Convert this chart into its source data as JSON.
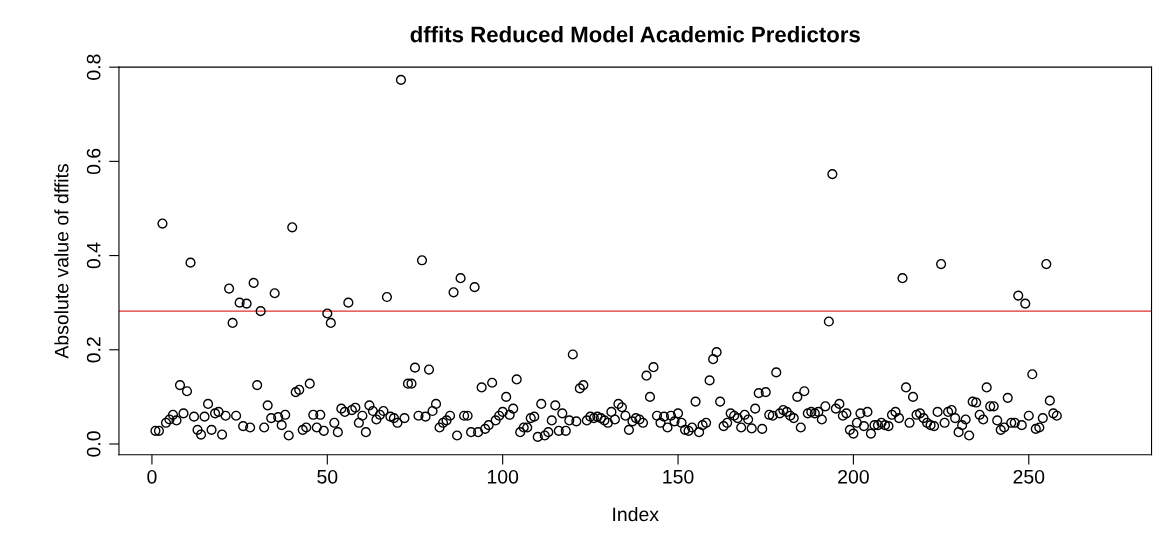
{
  "chart_data": {
    "type": "scatter",
    "title": "dffits Reduced Model Academic Predictors",
    "xlabel": "Index",
    "ylabel": "Absolute value of dffits",
    "x": [
      1,
      2,
      3,
      4,
      5,
      6,
      7,
      8,
      9,
      10,
      11,
      12,
      13,
      14,
      15,
      16,
      17,
      18,
      19,
      20,
      21,
      22,
      23,
      24,
      25,
      26,
      27,
      28,
      29,
      30,
      31,
      32,
      33,
      34,
      35,
      36,
      37,
      38,
      39,
      40,
      41,
      42,
      43,
      44,
      45,
      46,
      47,
      48,
      49,
      50,
      51,
      52,
      53,
      54,
      55,
      56,
      57,
      58,
      59,
      60,
      61,
      62,
      63,
      64,
      65,
      66,
      67,
      68,
      69,
      70,
      71,
      72,
      73,
      74,
      75,
      76,
      77,
      78,
      79,
      80,
      81,
      82,
      83,
      84,
      85,
      86,
      87,
      88,
      89,
      90,
      91,
      92,
      93,
      94,
      95,
      96,
      97,
      98,
      99,
      100,
      101,
      102,
      103,
      104,
      105,
      106,
      107,
      108,
      109,
      110,
      111,
      112,
      113,
      114,
      115,
      116,
      117,
      118,
      119,
      120,
      121,
      122,
      123,
      124,
      125,
      126,
      127,
      128,
      129,
      130,
      131,
      132,
      133,
      134,
      135,
      136,
      137,
      138,
      139,
      140,
      141,
      142,
      143,
      144,
      145,
      146,
      147,
      148,
      149,
      150,
      151,
      152,
      153,
      154,
      155,
      156,
      157,
      158,
      159,
      160,
      161,
      162,
      163,
      164,
      165,
      166,
      167,
      168,
      169,
      170,
      171,
      172,
      173,
      174,
      175,
      176,
      177,
      178,
      179,
      180,
      181,
      182,
      183,
      184,
      185,
      186,
      187,
      188,
      189,
      190,
      191,
      192,
      193,
      194,
      195,
      196,
      197,
      198,
      199,
      200,
      201,
      202,
      203,
      204,
      205,
      206,
      207,
      208,
      209,
      210,
      211,
      212,
      213,
      214,
      215,
      216,
      217,
      218,
      219,
      220,
      221,
      222,
      223,
      224,
      225,
      226,
      227,
      228,
      229,
      230,
      231,
      232,
      233,
      234,
      235,
      236,
      237,
      238,
      239,
      240,
      241,
      242,
      243,
      244,
      245,
      246,
      247,
      248,
      249,
      250,
      251,
      252,
      253,
      254,
      255,
      256,
      257,
      258
    ],
    "series": [
      {
        "color": "#000000",
        "marker": "circle",
        "values": [
          0.028,
          0.028,
          0.468,
          0.045,
          0.052,
          0.062,
          0.05,
          0.125,
          0.065,
          0.112,
          0.385,
          0.058,
          0.03,
          0.02,
          0.058,
          0.085,
          0.03,
          0.065,
          0.068,
          0.02,
          0.06,
          0.33,
          0.257,
          0.06,
          0.3,
          0.038,
          0.298,
          0.035,
          0.342,
          0.125,
          0.282,
          0.035,
          0.082,
          0.055,
          0.32,
          0.057,
          0.04,
          0.062,
          0.018,
          0.46,
          0.11,
          0.115,
          0.03,
          0.035,
          0.128,
          0.062,
          0.035,
          0.062,
          0.028,
          0.277,
          0.257,
          0.045,
          0.025,
          0.075,
          0.068,
          0.3,
          0.072,
          0.077,
          0.045,
          0.06,
          0.025,
          0.082,
          0.07,
          0.052,
          0.062,
          0.07,
          0.312,
          0.058,
          0.055,
          0.045,
          0.773,
          0.055,
          0.128,
          0.128,
          0.162,
          0.06,
          0.39,
          0.058,
          0.158,
          0.07,
          0.085,
          0.035,
          0.045,
          0.05,
          0.06,
          0.322,
          0.018,
          0.352,
          0.06,
          0.06,
          0.025,
          0.333,
          0.025,
          0.12,
          0.032,
          0.04,
          0.13,
          0.05,
          0.06,
          0.068,
          0.1,
          0.062,
          0.075,
          0.137,
          0.025,
          0.035,
          0.035,
          0.055,
          0.058,
          0.015,
          0.085,
          0.018,
          0.025,
          0.05,
          0.082,
          0.028,
          0.065,
          0.028,
          0.05,
          0.19,
          0.048,
          0.118,
          0.125,
          0.05,
          0.058,
          0.055,
          0.058,
          0.055,
          0.05,
          0.045,
          0.068,
          0.052,
          0.085,
          0.078,
          0.06,
          0.03,
          0.048,
          0.055,
          0.052,
          0.045,
          0.145,
          0.1,
          0.163,
          0.06,
          0.045,
          0.058,
          0.035,
          0.06,
          0.048,
          0.065,
          0.045,
          0.03,
          0.028,
          0.035,
          0.09,
          0.025,
          0.04,
          0.045,
          0.135,
          0.18,
          0.195,
          0.09,
          0.038,
          0.045,
          0.065,
          0.06,
          0.055,
          0.035,
          0.062,
          0.052,
          0.033,
          0.075,
          0.108,
          0.032,
          0.11,
          0.062,
          0.06,
          0.152,
          0.065,
          0.072,
          0.068,
          0.06,
          0.055,
          0.1,
          0.035,
          0.112,
          0.065,
          0.068,
          0.065,
          0.068,
          0.052,
          0.08,
          0.26,
          0.573,
          0.075,
          0.085,
          0.06,
          0.065,
          0.03,
          0.022,
          0.045,
          0.065,
          0.038,
          0.068,
          0.022,
          0.04,
          0.04,
          0.045,
          0.04,
          0.038,
          0.062,
          0.068,
          0.055,
          0.352,
          0.12,
          0.045,
          0.1,
          0.062,
          0.065,
          0.055,
          0.045,
          0.04,
          0.038,
          0.068,
          0.382,
          0.045,
          0.068,
          0.072,
          0.055,
          0.025,
          0.04,
          0.052,
          0.018,
          0.09,
          0.088,
          0.062,
          0.052,
          0.12,
          0.08,
          0.08,
          0.05,
          0.03,
          0.035,
          0.098,
          0.045,
          0.045,
          0.315,
          0.04,
          0.298,
          0.06,
          0.148,
          0.032,
          0.035,
          0.055,
          0.382,
          0.092,
          0.065,
          0.06
        ]
      }
    ],
    "xlim": [
      -9.4,
      285
    ],
    "xticks": [
      0,
      50,
      100,
      150,
      200,
      250
    ],
    "ylim": [
      -0.023,
      0.8
    ],
    "yticks": [
      {
        "value": 0,
        "label": "0.0"
      },
      {
        "value": 0.2,
        "label": "0.2"
      },
      {
        "value": 0.4,
        "label": "0.4"
      },
      {
        "value": 0.6,
        "label": "0.6"
      },
      {
        "value": 0.8,
        "label": "0.8"
      }
    ],
    "ref_lines": [
      {
        "axis": "y",
        "value": 0.282,
        "color": "#e0302c"
      }
    ],
    "grid": false,
    "legend": false
  }
}
